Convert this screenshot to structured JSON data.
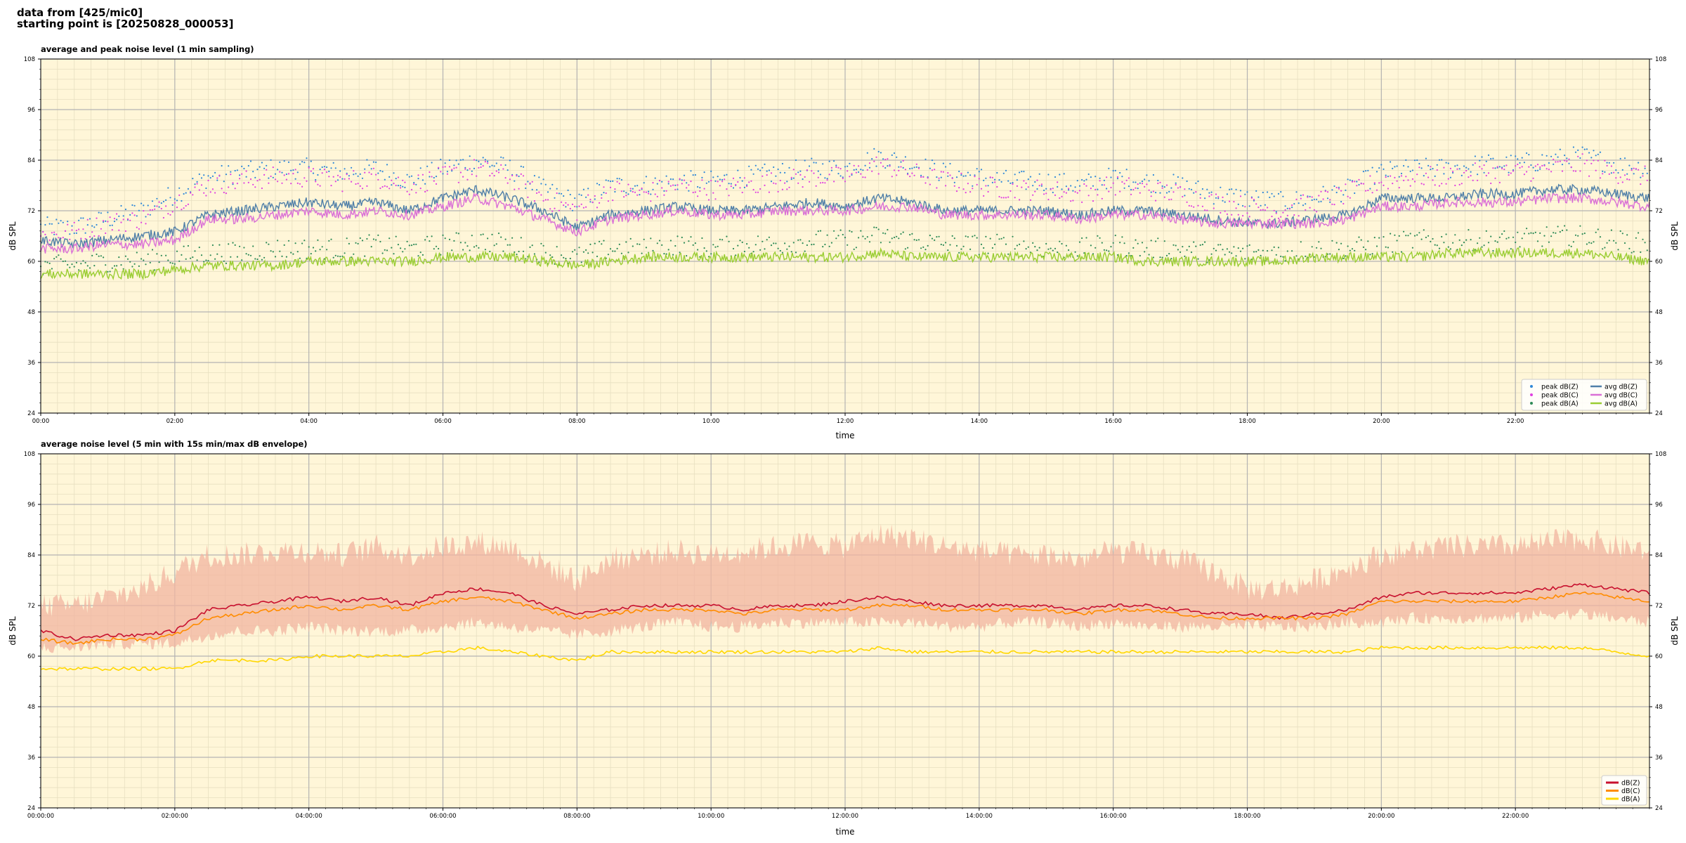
{
  "header": {
    "line1": "data from [425/mic0]",
    "line2": "starting point is [20250828_000053]"
  },
  "colors": {
    "plot_bg": "#fff6d8",
    "grid_major": "#b3b3b3",
    "grid_minor": "#e7dfc0",
    "peak_z": "#2f88d8",
    "peak_c": "#e040e0",
    "peak_a": "#2e8b57",
    "avg_z": "#4f7fa8",
    "avg_c": "#da70d6",
    "avg_a": "#9acd32",
    "env_fill": "#f2b4a0",
    "line_z": "#c8102e",
    "line_c": "#ff8c00",
    "line_a": "#ffd700"
  },
  "chart_data": [
    {
      "type": "scatter",
      "title": "average and peak noise level (1 min sampling)",
      "xlabel": "time",
      "ylabel": "dB SPL",
      "ylim": [
        24,
        108
      ],
      "yticks": [
        "24",
        "36",
        "48",
        "60",
        "72",
        "84",
        "96",
        "108"
      ],
      "xlim_hours": [
        0,
        24
      ],
      "xticks": [
        "00:00",
        "02:00",
        "04:00",
        "06:00",
        "08:00",
        "10:00",
        "12:00",
        "14:00",
        "16:00",
        "18:00",
        "20:00",
        "22:00"
      ],
      "grid": true,
      "legend_position": "bottom-right",
      "hours": [
        0,
        0.5,
        1,
        1.5,
        2,
        2.5,
        3,
        3.5,
        4,
        4.5,
        5,
        5.5,
        6,
        6.5,
        7,
        7.5,
        8,
        8.5,
        9,
        9.5,
        10,
        10.5,
        11,
        11.5,
        12,
        12.5,
        13,
        13.5,
        14,
        14.5,
        15,
        15.5,
        16,
        16.5,
        17,
        17.5,
        18,
        18.5,
        19,
        19.5,
        20,
        20.5,
        21,
        21.5,
        22,
        22.5,
        23,
        23.5,
        24
      ],
      "series": [
        {
          "name": "peak dB(Z)",
          "kind": "points",
          "color_key": "peak_z",
          "values": [
            68,
            68,
            70,
            72,
            76,
            80,
            81,
            82,
            82,
            81,
            82,
            79,
            82,
            84,
            82,
            77,
            74,
            78,
            78,
            79,
            79,
            80,
            81,
            82,
            82,
            85,
            83,
            81,
            80,
            79,
            79,
            78,
            80,
            79,
            78,
            76,
            75,
            74,
            75,
            77,
            81,
            82,
            82,
            83,
            83,
            84,
            85,
            83,
            82
          ]
        },
        {
          "name": "peak dB(C)",
          "kind": "points",
          "color_key": "peak_c",
          "values": [
            66,
            67,
            69,
            70,
            74,
            78,
            79,
            80,
            80,
            79,
            80,
            78,
            80,
            82,
            80,
            75,
            72,
            77,
            76,
            78,
            77,
            78,
            79,
            80,
            80,
            83,
            81,
            79,
            78,
            77,
            77,
            76,
            78,
            77,
            76,
            74,
            73,
            72,
            74,
            76,
            79,
            80,
            80,
            81,
            81,
            82,
            83,
            81,
            80
          ]
        },
        {
          "name": "peak dB(A)",
          "kind": "points",
          "color_key": "peak_a",
          "values": [
            59,
            59,
            60,
            60,
            61,
            62,
            62,
            63,
            63,
            63,
            64,
            63,
            64,
            65,
            64,
            62,
            61,
            63,
            63,
            64,
            63,
            64,
            64,
            65,
            65,
            66,
            65,
            64,
            64,
            64,
            63,
            63,
            64,
            63,
            63,
            62,
            62,
            62,
            63,
            63,
            64,
            65,
            65,
            65,
            65,
            66,
            66,
            65,
            64
          ]
        },
        {
          "name": "avg dB(Z)",
          "kind": "line",
          "color_key": "avg_z",
          "values": [
            65,
            64,
            65,
            66,
            67,
            71,
            72,
            73,
            74,
            73,
            74,
            72,
            75,
            77,
            75,
            72,
            68,
            71,
            72,
            73,
            72,
            72,
            73,
            74,
            73,
            75,
            74,
            72,
            72,
            72,
            72,
            71,
            72,
            72,
            71,
            70,
            69,
            69,
            70,
            71,
            75,
            75,
            75,
            76,
            76,
            77,
            77,
            76,
            75
          ]
        },
        {
          "name": "avg dB(C)",
          "kind": "line",
          "color_key": "avg_c",
          "values": [
            63,
            63,
            64,
            64,
            65,
            70,
            70,
            71,
            72,
            71,
            72,
            71,
            73,
            75,
            73,
            70,
            67,
            70,
            71,
            72,
            71,
            71,
            72,
            72,
            72,
            73,
            73,
            71,
            71,
            71,
            71,
            70,
            71,
            71,
            70,
            69,
            69,
            69,
            69,
            70,
            73,
            73,
            74,
            74,
            74,
            75,
            75,
            74,
            73
          ]
        },
        {
          "name": "avg dB(A)",
          "kind": "line",
          "color_key": "avg_a",
          "values": [
            57,
            57,
            57,
            57,
            58,
            59,
            59,
            59,
            60,
            60,
            60,
            60,
            61,
            61,
            61,
            60,
            59,
            60,
            61,
            61,
            61,
            61,
            61,
            61,
            61,
            62,
            61,
            61,
            61,
            61,
            61,
            61,
            61,
            60,
            60,
            60,
            60,
            60,
            61,
            61,
            61,
            61,
            62,
            62,
            62,
            62,
            62,
            61,
            60
          ]
        }
      ]
    },
    {
      "type": "line",
      "title": "average noise level (5 min with 15s min/max dB envelope)",
      "xlabel": "time",
      "ylabel": "dB SPL",
      "ylim": [
        24,
        108
      ],
      "yticks": [
        "24",
        "36",
        "48",
        "60",
        "72",
        "84",
        "96",
        "108"
      ],
      "xlim_hours": [
        0,
        24
      ],
      "xticks": [
        "00:00:00",
        "02:00:00",
        "04:00:00",
        "06:00:00",
        "08:00:00",
        "10:00:00",
        "12:00:00",
        "14:00:00",
        "16:00:00",
        "18:00:00",
        "20:00:00",
        "22:00:00"
      ],
      "grid": true,
      "legend_position": "bottom-right",
      "hours": [
        0,
        0.5,
        1,
        1.5,
        2,
        2.5,
        3,
        3.5,
        4,
        4.5,
        5,
        5.5,
        6,
        6.5,
        7,
        7.5,
        8,
        8.5,
        9,
        9.5,
        10,
        10.5,
        11,
        11.5,
        12,
        12.5,
        13,
        13.5,
        14,
        14.5,
        15,
        15.5,
        16,
        16.5,
        17,
        17.5,
        18,
        18.5,
        19,
        19.5,
        20,
        20.5,
        21,
        21.5,
        22,
        22.5,
        23,
        23.5,
        24
      ],
      "envelope": {
        "color_key": "env_fill",
        "min": [
          62,
          62,
          63,
          63,
          63,
          65,
          66,
          66,
          67,
          66,
          66,
          66,
          67,
          68,
          67,
          66,
          65,
          66,
          67,
          68,
          67,
          67,
          68,
          68,
          68,
          68,
          68,
          67,
          67,
          68,
          68,
          67,
          68,
          67,
          67,
          67,
          67,
          67,
          67,
          68,
          68,
          69,
          69,
          69,
          69,
          70,
          70,
          69,
          68
        ],
        "max": [
          72,
          72,
          74,
          76,
          80,
          84,
          84,
          85,
          85,
          84,
          86,
          84,
          86,
          87,
          86,
          82,
          78,
          83,
          84,
          85,
          84,
          85,
          86,
          87,
          86,
          89,
          88,
          86,
          85,
          84,
          84,
          83,
          85,
          84,
          83,
          80,
          76,
          76,
          78,
          81,
          84,
          85,
          86,
          86,
          86,
          87,
          88,
          86,
          85
        ]
      },
      "series": [
        {
          "name": "dB(Z)",
          "color_key": "line_z",
          "values": [
            66,
            64,
            65,
            65,
            66,
            71,
            72,
            73,
            74,
            73,
            74,
            72,
            75,
            76,
            75,
            72,
            70,
            71,
            72,
            72,
            72,
            71,
            72,
            72,
            73,
            74,
            73,
            72,
            72,
            72,
            72,
            71,
            72,
            72,
            71,
            70,
            70,
            69,
            70,
            71,
            74,
            75,
            75,
            75,
            75,
            76,
            77,
            76,
            75
          ]
        },
        {
          "name": "dB(C)",
          "color_key": "line_c",
          "values": [
            64,
            63,
            64,
            64,
            65,
            69,
            70,
            71,
            72,
            71,
            72,
            71,
            73,
            74,
            73,
            71,
            69,
            70,
            71,
            71,
            71,
            70,
            71,
            71,
            71,
            72,
            72,
            71,
            71,
            71,
            71,
            70,
            71,
            71,
            70,
            69,
            69,
            69,
            69,
            70,
            73,
            73,
            73,
            73,
            73,
            74,
            75,
            74,
            73
          ]
        },
        {
          "name": "dB(A)",
          "color_key": "line_a",
          "values": [
            57,
            57,
            57,
            57,
            57,
            59,
            59,
            59,
            60,
            60,
            60,
            60,
            61,
            62,
            61,
            60,
            59,
            61,
            61,
            61,
            61,
            61,
            61,
            61,
            61,
            62,
            61,
            61,
            61,
            61,
            61,
            61,
            61,
            61,
            61,
            61,
            61,
            61,
            61,
            61,
            62,
            62,
            62,
            62,
            62,
            62,
            62,
            61,
            60
          ]
        }
      ]
    }
  ]
}
